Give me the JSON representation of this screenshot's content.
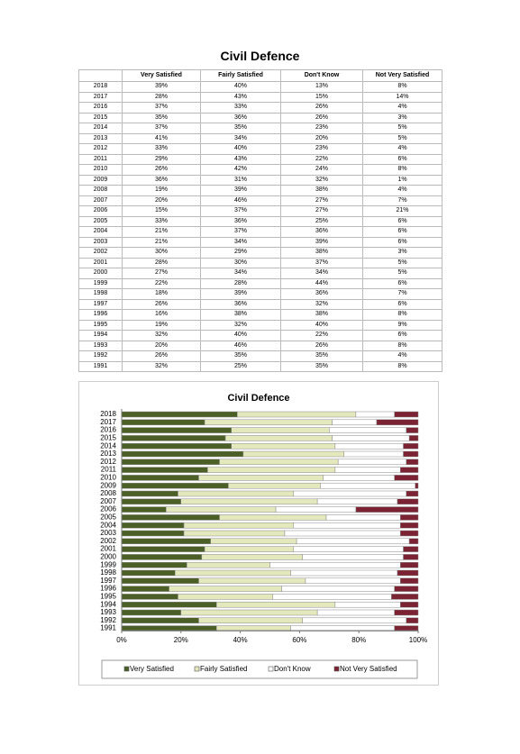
{
  "title": "Civil Defence",
  "table": {
    "columns": [
      "Very Satisfied",
      "Fairly Satisfied",
      "Don't Know",
      "Not Very Satisfied"
    ],
    "rows": [
      [
        "2018",
        "39%",
        "40%",
        "13%",
        "8%"
      ],
      [
        "2017",
        "28%",
        "43%",
        "15%",
        "14%"
      ],
      [
        "2016",
        "37%",
        "33%",
        "26%",
        "4%"
      ],
      [
        "2015",
        "35%",
        "36%",
        "26%",
        "3%"
      ],
      [
        "2014",
        "37%",
        "35%",
        "23%",
        "5%"
      ],
      [
        "2013",
        "41%",
        "34%",
        "20%",
        "5%"
      ],
      [
        "2012",
        "33%",
        "40%",
        "23%",
        "4%"
      ],
      [
        "2011",
        "29%",
        "43%",
        "22%",
        "6%"
      ],
      [
        "2010",
        "26%",
        "42%",
        "24%",
        "8%"
      ],
      [
        "2009",
        "36%",
        "31%",
        "32%",
        "1%"
      ],
      [
        "2008",
        "19%",
        "39%",
        "38%",
        "4%"
      ],
      [
        "2007",
        "20%",
        "46%",
        "27%",
        "7%"
      ],
      [
        "2006",
        "15%",
        "37%",
        "27%",
        "21%"
      ],
      [
        "2005",
        "33%",
        "36%",
        "25%",
        "6%"
      ],
      [
        "2004",
        "21%",
        "37%",
        "36%",
        "6%"
      ],
      [
        "2003",
        "21%",
        "34%",
        "39%",
        "6%"
      ],
      [
        "2002",
        "30%",
        "29%",
        "38%",
        "3%"
      ],
      [
        "2001",
        "28%",
        "30%",
        "37%",
        "5%"
      ],
      [
        "2000",
        "27%",
        "34%",
        "34%",
        "5%"
      ],
      [
        "1999",
        "22%",
        "28%",
        "44%",
        "6%"
      ],
      [
        "1998",
        "18%",
        "39%",
        "36%",
        "7%"
      ],
      [
        "1997",
        "26%",
        "36%",
        "32%",
        "6%"
      ],
      [
        "1996",
        "16%",
        "38%",
        "38%",
        "8%"
      ],
      [
        "1995",
        "19%",
        "32%",
        "40%",
        "9%"
      ],
      [
        "1994",
        "32%",
        "40%",
        "22%",
        "6%"
      ],
      [
        "1993",
        "20%",
        "46%",
        "26%",
        "8%"
      ],
      [
        "1992",
        "26%",
        "35%",
        "35%",
        "4%"
      ],
      [
        "1991",
        "32%",
        "25%",
        "35%",
        "8%"
      ]
    ]
  },
  "chart_data": {
    "type": "stacked-bar-horizontal",
    "title": "Civil Defence",
    "categories": [
      "2018",
      "2017",
      "2016",
      "2015",
      "2014",
      "2013",
      "2012",
      "2011",
      "2010",
      "2009",
      "2008",
      "2007",
      "2006",
      "2005",
      "2004",
      "2003",
      "2002",
      "2001",
      "2000",
      "1999",
      "1998",
      "1997",
      "1996",
      "1995",
      "1994",
      "1993",
      "1992",
      "1991"
    ],
    "series": [
      {
        "name": "Very Satisfied",
        "color": "#4b5f26",
        "values": [
          39,
          28,
          37,
          35,
          37,
          41,
          33,
          29,
          26,
          36,
          19,
          20,
          15,
          33,
          21,
          21,
          30,
          28,
          27,
          22,
          18,
          26,
          16,
          19,
          32,
          20,
          26,
          32
        ]
      },
      {
        "name": "Fairly Satisfied",
        "color": "#e4e9bd",
        "values": [
          40,
          43,
          33,
          36,
          35,
          34,
          40,
          43,
          42,
          31,
          39,
          46,
          37,
          36,
          37,
          34,
          29,
          30,
          34,
          28,
          39,
          36,
          38,
          32,
          40,
          46,
          35,
          25
        ]
      },
      {
        "name": "Don't Know",
        "color": "#ffffff",
        "values": [
          13,
          15,
          26,
          26,
          23,
          20,
          23,
          22,
          24,
          32,
          38,
          27,
          27,
          25,
          36,
          39,
          38,
          37,
          34,
          44,
          36,
          32,
          38,
          40,
          22,
          26,
          35,
          35
        ]
      },
      {
        "name": "Not Very Satisfied",
        "color": "#7b2233",
        "values": [
          8,
          14,
          4,
          3,
          5,
          5,
          4,
          6,
          8,
          1,
          4,
          7,
          21,
          6,
          6,
          6,
          3,
          5,
          5,
          6,
          7,
          6,
          8,
          9,
          6,
          8,
          4,
          8
        ]
      }
    ],
    "xlim": [
      0,
      100
    ],
    "xticks": [
      {
        "value": 0,
        "label": "0%"
      },
      {
        "value": 20,
        "label": "20%"
      },
      {
        "value": 40,
        "label": "40%"
      },
      {
        "value": 60,
        "label": "60%"
      },
      {
        "value": 80,
        "label": "80%"
      },
      {
        "value": 100,
        "label": "100%"
      }
    ]
  }
}
